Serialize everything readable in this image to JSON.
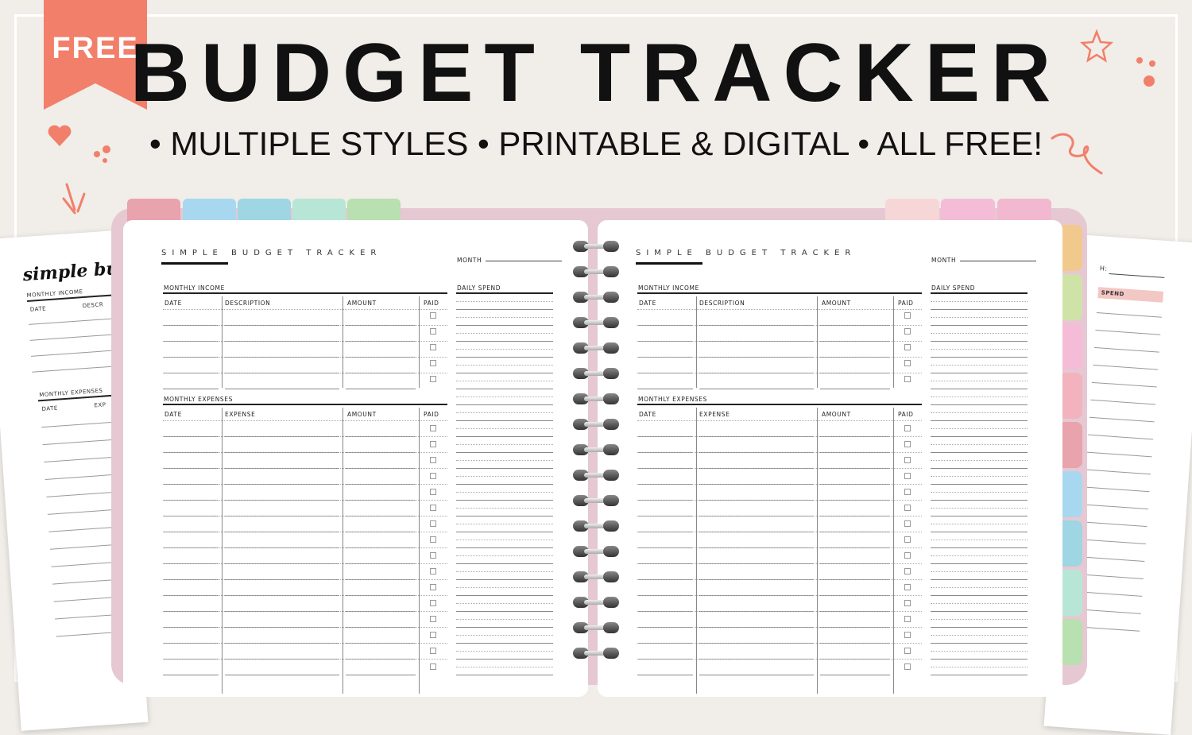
{
  "badge": {
    "label": "FREE"
  },
  "header": {
    "title": "BUDGET TRACKER",
    "subtitle": "• MULTIPLE STYLES • PRINTABLE & DIGITAL • ALL FREE!"
  },
  "colors": {
    "background": "#f1ede9",
    "accent": "#f27f6a",
    "cover": "#e6c8d3",
    "top_tabs_left": [
      "#e8a3ad",
      "#a8d8f0",
      "#9ed6e3",
      "#b8e6d6",
      "#b8e0b0"
    ],
    "top_tabs_right": [
      "#f6d6d6",
      "#f4bcd6",
      "#f2b8cf"
    ],
    "side_tabs": [
      "#f2c98d",
      "#cfe3a8",
      "#f4bcd6",
      "#f2b3be",
      "#e8a3ad",
      "#a8d8f0",
      "#9ed6e3",
      "#b8e6d6",
      "#b8e0b0"
    ]
  },
  "planner": {
    "page_title": "SIMPLE BUDGET TRACKER",
    "month_label": "MONTH",
    "daily_spend_label": "DAILY SPEND",
    "income": {
      "heading": "MONTHLY INCOME",
      "columns": [
        "DATE",
        "DESCRIPTION",
        "AMOUNT",
        "PAID"
      ]
    },
    "expenses": {
      "heading": "MONTHLY EXPENSES",
      "columns": [
        "DATE",
        "EXPENSE",
        "AMOUNT",
        "PAID"
      ]
    }
  },
  "side_paper_left": {
    "title": "simple bu",
    "income_label": "MONTHLY INCOME",
    "date_label": "DATE",
    "desc_label": "DESCR",
    "expenses_label": "MONTHLY EXPENSES",
    "exp_date_label": "DATE",
    "exp_label": "EXP"
  },
  "side_paper_right": {
    "month_fragment": "H:",
    "spend_label": "SPEND"
  }
}
